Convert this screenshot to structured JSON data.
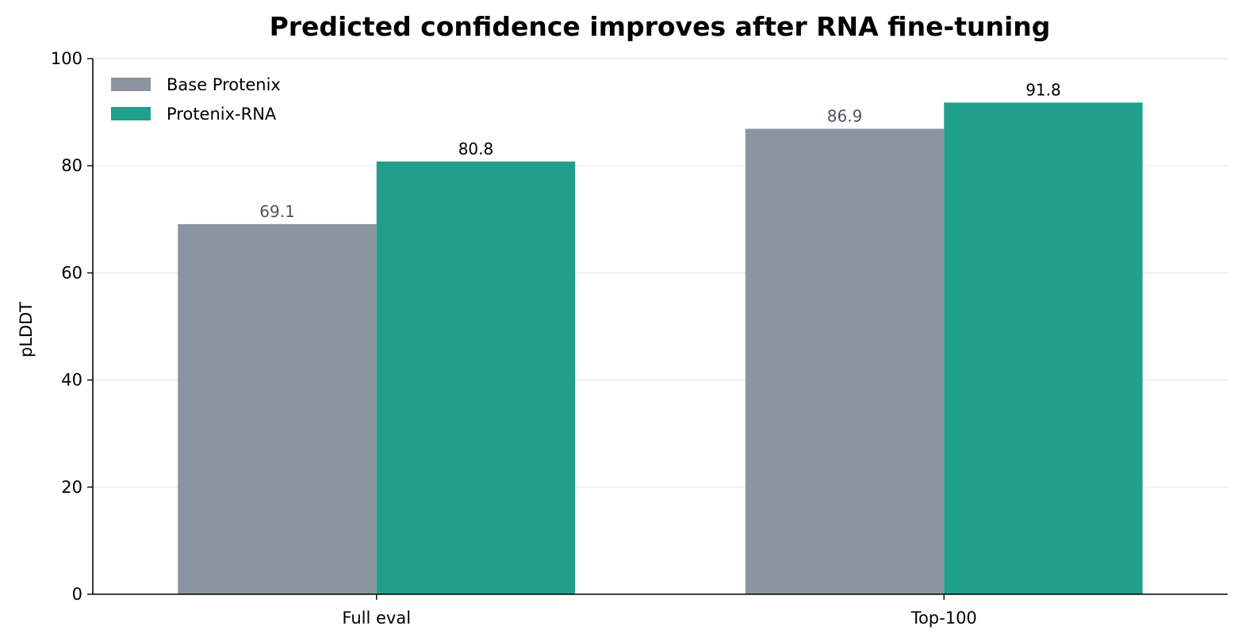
{
  "chart_data": {
    "type": "bar",
    "title": "Predicted confidence improves after RNA fine-tuning",
    "xlabel": "",
    "ylabel": "pLDDT",
    "categories": [
      "Full eval",
      "Top-100"
    ],
    "series": [
      {
        "name": "Base Protenix",
        "values": [
          69.1,
          86.9
        ],
        "labels": [
          "69.1",
          "86.9"
        ],
        "color": "#8b95a1",
        "label_color": "#4a5563"
      },
      {
        "name": "Protenix-RNA",
        "values": [
          80.8,
          91.8
        ],
        "labels": [
          "80.8",
          "91.8"
        ],
        "color": "#20a08a",
        "label_color": "#000000"
      }
    ],
    "ylim": [
      0,
      100
    ],
    "yticks": [
      "0",
      "20",
      "40",
      "60",
      "80",
      "100"
    ],
    "grid": "horizontal",
    "legend_position": "top-left"
  }
}
